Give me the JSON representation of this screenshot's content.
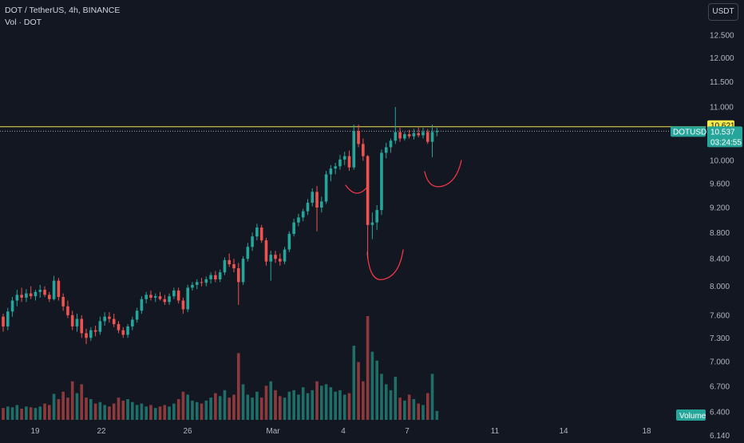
{
  "header": {
    "title": "DOT / TetherUS, 4h, BINANCE",
    "volume_label": "Vol · DOT"
  },
  "scale_button": "USDT",
  "colors": {
    "background": "#131722",
    "up": "#26a69a",
    "down": "#ef5350",
    "up_volume": "#1f6e68",
    "down_volume": "#8e3a3c",
    "resistance_line": "#f0e14a",
    "annotation": "#f23645",
    "price_badge": "#26a69a",
    "resistance_badge": "#f5e94a"
  },
  "chart_data": {
    "type": "candlestick",
    "symbol": "DOTUSDT",
    "interval": "4h",
    "y_axis": {
      "scale": "log",
      "ticks": [
        "12.500",
        "12.000",
        "11.500",
        "11.000",
        "10.000",
        "9.600",
        "9.200",
        "8.800",
        "8.400",
        "8.000",
        "7.600",
        "7.300",
        "7.000",
        "6.700",
        "6.400",
        "6.140"
      ],
      "range": [
        6.1,
        13.3
      ]
    },
    "x_axis": {
      "ticks": [
        "19",
        "22",
        "26",
        "Mar",
        "4",
        "7",
        "11",
        "14",
        "18"
      ]
    },
    "resistance_level": {
      "value": 10.621,
      "label": "10.621"
    },
    "last_price": {
      "symbol_label": "DOTUSDT",
      "value": "10.537",
      "countdown": "03:24:55"
    },
    "volume_label": "Volume",
    "candles": [
      [
        7.58,
        7.62,
        7.38,
        7.45
      ],
      [
        7.45,
        7.7,
        7.4,
        7.65
      ],
      [
        7.65,
        7.85,
        7.58,
        7.8
      ],
      [
        7.8,
        7.95,
        7.72,
        7.88
      ],
      [
        7.88,
        7.98,
        7.78,
        7.84
      ],
      [
        7.84,
        7.96,
        7.78,
        7.9
      ],
      [
        7.9,
        8.0,
        7.82,
        7.86
      ],
      [
        7.86,
        7.95,
        7.8,
        7.92
      ],
      [
        7.92,
        8.02,
        7.84,
        7.95
      ],
      [
        7.95,
        8.0,
        7.85,
        7.88
      ],
      [
        7.88,
        7.92,
        7.78,
        7.82
      ],
      [
        7.82,
        8.15,
        7.8,
        8.08
      ],
      [
        8.08,
        8.12,
        7.8,
        7.85
      ],
      [
        7.85,
        7.9,
        7.66,
        7.72
      ],
      [
        7.72,
        7.8,
        7.56,
        7.6
      ],
      [
        7.6,
        7.66,
        7.4,
        7.45
      ],
      [
        7.45,
        7.62,
        7.38,
        7.55
      ],
      [
        7.55,
        7.6,
        7.3,
        7.36
      ],
      [
        7.36,
        7.42,
        7.22,
        7.3
      ],
      [
        7.3,
        7.44,
        7.26,
        7.4
      ],
      [
        7.4,
        7.46,
        7.32,
        7.38
      ],
      [
        7.38,
        7.58,
        7.34,
        7.52
      ],
      [
        7.52,
        7.64,
        7.46,
        7.58
      ],
      [
        7.58,
        7.64,
        7.5,
        7.55
      ],
      [
        7.55,
        7.62,
        7.44,
        7.48
      ],
      [
        7.48,
        7.52,
        7.36,
        7.4
      ],
      [
        7.4,
        7.44,
        7.3,
        7.34
      ],
      [
        7.34,
        7.48,
        7.3,
        7.45
      ],
      [
        7.45,
        7.58,
        7.4,
        7.54
      ],
      [
        7.54,
        7.7,
        7.5,
        7.66
      ],
      [
        7.66,
        7.86,
        7.62,
        7.82
      ],
      [
        7.82,
        7.92,
        7.76,
        7.88
      ],
      [
        7.88,
        7.94,
        7.8,
        7.84
      ],
      [
        7.84,
        7.9,
        7.78,
        7.86
      ],
      [
        7.86,
        7.92,
        7.8,
        7.82
      ],
      [
        7.82,
        7.88,
        7.74,
        7.78
      ],
      [
        7.78,
        7.9,
        7.74,
        7.86
      ],
      [
        7.86,
        7.98,
        7.82,
        7.94
      ],
      [
        7.94,
        7.98,
        7.76,
        7.8
      ],
      [
        7.8,
        7.84,
        7.62,
        7.68
      ],
      [
        7.68,
        8.02,
        7.64,
        7.98
      ],
      [
        7.98,
        8.06,
        7.94,
        8.02
      ],
      [
        8.02,
        8.1,
        7.96,
        8.06
      ],
      [
        8.06,
        8.12,
        8.0,
        8.05
      ],
      [
        8.05,
        8.14,
        8.0,
        8.1
      ],
      [
        8.1,
        8.2,
        8.04,
        8.16
      ],
      [
        8.16,
        8.22,
        8.06,
        8.1
      ],
      [
        8.1,
        8.24,
        8.06,
        8.2
      ],
      [
        8.2,
        8.42,
        8.16,
        8.38
      ],
      [
        8.38,
        8.48,
        8.28,
        8.32
      ],
      [
        8.32,
        8.4,
        8.2,
        8.26
      ],
      [
        8.26,
        8.34,
        7.74,
        8.06
      ],
      [
        8.06,
        8.44,
        8.02,
        8.4
      ],
      [
        8.4,
        8.64,
        8.36,
        8.58
      ],
      [
        8.58,
        8.8,
        8.52,
        8.74
      ],
      [
        8.74,
        8.94,
        8.68,
        8.88
      ],
      [
        8.88,
        8.92,
        8.64,
        8.68
      ],
      [
        8.68,
        8.72,
        8.3,
        8.36
      ],
      [
        8.36,
        8.52,
        8.08,
        8.46
      ],
      [
        8.46,
        8.52,
        8.34,
        8.4
      ],
      [
        8.4,
        8.48,
        8.3,
        8.36
      ],
      [
        8.36,
        8.58,
        8.32,
        8.54
      ],
      [
        8.54,
        8.82,
        8.5,
        8.78
      ],
      [
        8.78,
        9.02,
        8.74,
        8.96
      ],
      [
        8.96,
        9.1,
        8.9,
        9.04
      ],
      [
        9.04,
        9.18,
        8.98,
        9.14
      ],
      [
        9.14,
        9.34,
        9.08,
        9.28
      ],
      [
        9.28,
        9.52,
        9.22,
        9.46
      ],
      [
        9.46,
        9.56,
        8.82,
        9.2
      ],
      [
        9.2,
        9.38,
        9.12,
        9.3
      ],
      [
        9.3,
        9.82,
        9.26,
        9.76
      ],
      [
        9.76,
        9.92,
        9.64,
        9.86
      ],
      [
        9.86,
        9.96,
        9.76,
        9.9
      ],
      [
        9.9,
        10.1,
        9.84,
        10.02
      ],
      [
        10.02,
        10.16,
        9.92,
        10.08
      ],
      [
        10.08,
        10.18,
        9.82,
        9.88
      ],
      [
        9.88,
        10.66,
        9.84,
        10.54
      ],
      [
        10.54,
        10.66,
        10.24,
        10.3
      ],
      [
        10.3,
        10.4,
        10.0,
        10.08
      ],
      [
        10.08,
        10.1,
        8.4,
        8.92
      ],
      [
        8.92,
        9.12,
        8.7,
        8.96
      ],
      [
        8.96,
        9.24,
        8.84,
        9.16
      ],
      [
        9.16,
        10.2,
        9.08,
        10.14
      ],
      [
        10.14,
        10.32,
        10.04,
        10.24
      ],
      [
        10.24,
        10.4,
        10.14,
        10.36
      ],
      [
        10.36,
        11.0,
        10.3,
        10.52
      ],
      [
        10.52,
        10.6,
        10.34,
        10.4
      ],
      [
        10.4,
        10.52,
        10.36,
        10.48
      ],
      [
        10.48,
        10.56,
        10.4,
        10.44
      ],
      [
        10.44,
        10.58,
        10.38,
        10.5
      ],
      [
        10.5,
        10.62,
        10.42,
        10.46
      ],
      [
        10.46,
        10.6,
        10.4,
        10.52
      ],
      [
        10.52,
        10.58,
        10.3,
        10.34
      ],
      [
        10.34,
        10.66,
        10.06,
        10.52
      ],
      [
        10.52,
        10.6,
        10.44,
        10.54
      ]
    ],
    "volumes": [
      0.16,
      0.18,
      0.17,
      0.2,
      0.15,
      0.18,
      0.17,
      0.16,
      0.18,
      0.22,
      0.2,
      0.35,
      0.28,
      0.38,
      0.3,
      0.52,
      0.36,
      0.48,
      0.3,
      0.28,
      0.22,
      0.24,
      0.2,
      0.18,
      0.22,
      0.3,
      0.26,
      0.28,
      0.24,
      0.2,
      0.22,
      0.18,
      0.2,
      0.16,
      0.18,
      0.2,
      0.18,
      0.22,
      0.28,
      0.38,
      0.34,
      0.26,
      0.24,
      0.22,
      0.26,
      0.3,
      0.36,
      0.32,
      0.4,
      0.3,
      0.34,
      0.9,
      0.48,
      0.34,
      0.3,
      0.38,
      0.3,
      0.46,
      0.52,
      0.4,
      0.32,
      0.3,
      0.38,
      0.4,
      0.34,
      0.44,
      0.36,
      0.4,
      0.52,
      0.46,
      0.48,
      0.44,
      0.38,
      0.4,
      0.34,
      0.36,
      1.0,
      0.78,
      0.52,
      1.4,
      0.92,
      0.8,
      0.62,
      0.48,
      0.4,
      0.58,
      0.3,
      0.26,
      0.34,
      0.28,
      0.22,
      0.2,
      0.36,
      0.62,
      0.12
    ]
  }
}
